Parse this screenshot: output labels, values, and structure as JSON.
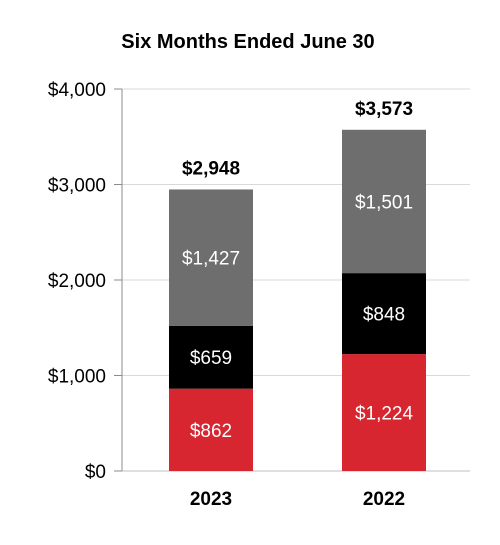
{
  "chart_data": {
    "type": "bar",
    "stacked": true,
    "title": "Six Months Ended June 30",
    "categories": [
      "2023",
      "2022"
    ],
    "series": [
      {
        "values": [
          862,
          1224
        ],
        "labels": [
          "$862",
          "$1,224"
        ],
        "color": "#D7262F"
      },
      {
        "values": [
          659,
          848
        ],
        "labels": [
          "$659",
          "$848"
        ],
        "color": "#000000"
      },
      {
        "values": [
          1427,
          1501
        ],
        "labels": [
          "$1,427",
          "$1,501"
        ],
        "color": "#6E6E6E"
      }
    ],
    "totals": [
      2948,
      3573
    ],
    "total_labels": [
      "$2,948",
      "$3,573"
    ],
    "ylim": [
      0,
      4000
    ],
    "yticks": [
      0,
      1000,
      2000,
      3000,
      4000
    ],
    "ytick_labels": [
      "$0",
      "$1,000",
      "$2,000",
      "$3,000",
      "$4,000"
    ],
    "grid": true,
    "legend": "none"
  }
}
